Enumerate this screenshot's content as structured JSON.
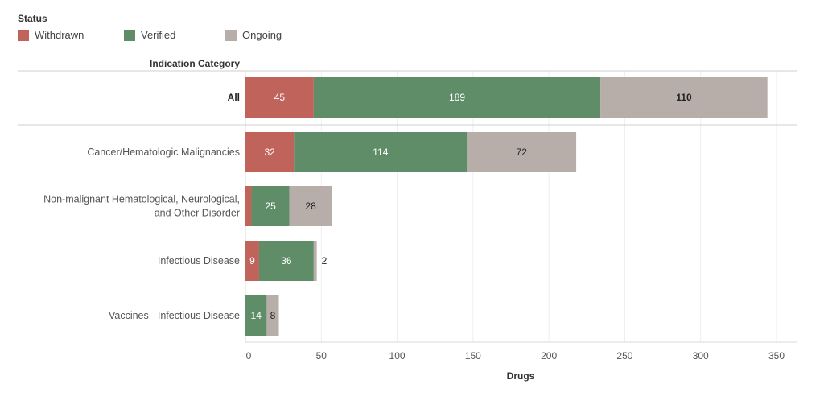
{
  "legend": {
    "title": "Status",
    "items": [
      {
        "label": "Withdrawn",
        "color": "#c0635a"
      },
      {
        "label": "Verified",
        "color": "#5e8d67"
      },
      {
        "label": "Ongoing",
        "color": "#b8aea9"
      }
    ]
  },
  "chart_data": {
    "type": "bar",
    "orientation": "horizontal",
    "stacked": true,
    "title": "",
    "row_header": "Indication Category",
    "xlabel": "Drugs",
    "ylabel": "Indication Category",
    "xlim": [
      0,
      350
    ],
    "x_ticks": [
      0,
      50,
      100,
      150,
      200,
      250,
      300,
      350
    ],
    "grid": true,
    "legend_position": "top-left",
    "categories": [
      "All",
      "Cancer/Hematologic Malignancies",
      "Non-malignant Hematological, Neurological, and Other Disorder",
      "Infectious Disease",
      "Vaccines - Infectious Disease"
    ],
    "category_lines": [
      [
        "All"
      ],
      [
        "Cancer/Hematologic Malignancies"
      ],
      [
        "Non-malignant Hematological, Neurological,",
        "and Other Disorder"
      ],
      [
        "Infectious Disease"
      ],
      [
        "Vaccines - Infectious Disease"
      ]
    ],
    "series": [
      {
        "name": "Withdrawn",
        "color": "#c0635a",
        "values": [
          45,
          32,
          4,
          9,
          0
        ],
        "labels": [
          "45",
          "32",
          "",
          "9",
          ""
        ]
      },
      {
        "name": "Verified",
        "color": "#5e8d67",
        "values": [
          189,
          114,
          25,
          36,
          14
        ],
        "labels": [
          "189",
          "114",
          "25",
          "36",
          "14"
        ]
      },
      {
        "name": "Ongoing",
        "color": "#b8aea9",
        "values": [
          110,
          72,
          28,
          2,
          8
        ],
        "labels": [
          "110",
          "72",
          "28",
          "2",
          "8"
        ]
      }
    ]
  }
}
